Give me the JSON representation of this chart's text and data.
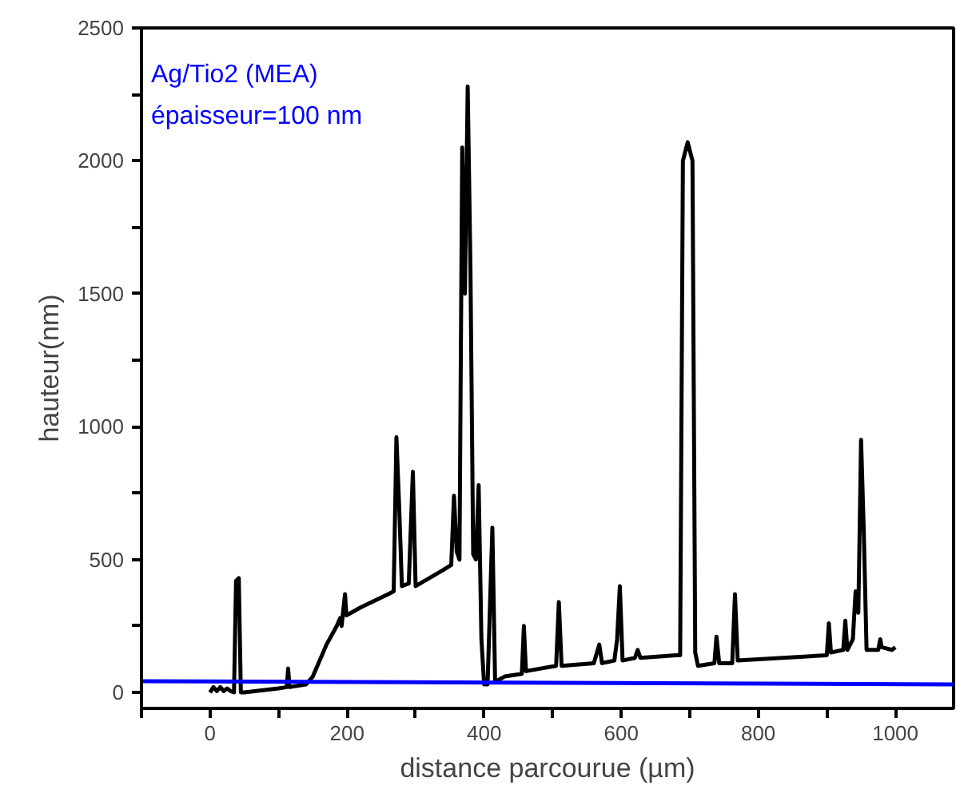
{
  "chart_data": {
    "type": "line",
    "xlabel": "distance parcourue (µm)",
    "ylabel": "hauteur(nm)",
    "annotations": [
      "Ag/Tio2 (MEA)",
      "épaisseur=100 nm"
    ],
    "xlim": [
      -100,
      1085
    ],
    "ylim": [
      -60,
      2500
    ],
    "xticks": [
      {
        "value": -100,
        "label": null
      },
      0,
      {
        "value": 100,
        "label": null
      },
      200,
      {
        "value": 300,
        "label": null
      },
      400,
      {
        "value": 500,
        "label": null
      },
      600,
      {
        "value": 700,
        "label": null
      },
      800,
      {
        "value": 900,
        "label": null
      },
      1000
    ],
    "yticks": [
      0,
      {
        "value": 250,
        "label": null
      },
      500,
      {
        "value": 750,
        "label": null
      },
      1000,
      {
        "value": 1250,
        "label": null
      },
      1500,
      {
        "value": 1750,
        "label": null
      },
      2000,
      {
        "value": 2250,
        "label": null
      },
      2500
    ],
    "grid": false,
    "marker": "none",
    "line_style": "solid",
    "series": [
      {
        "color": "#000000",
        "x": [
          0,
          5,
          10,
          15,
          20,
          25,
          30,
          35,
          38,
          42,
          45,
          50,
          100,
          112,
          114,
          116,
          140,
          150,
          170,
          185,
          190,
          192,
          197,
          199,
          220,
          260,
          268,
          272,
          276,
          280,
          290,
          296,
          300,
          340,
          352,
          356,
          360,
          364,
          368,
          372,
          376,
          380,
          384,
          388,
          392,
          396,
          400,
          405,
          412,
          416,
          430,
          455,
          458,
          461,
          505,
          509,
          513,
          560,
          568,
          572,
          590,
          594,
          598,
          602,
          620,
          624,
          628,
          680,
          686,
          690,
          697,
          704,
          708,
          712,
          736,
          739,
          743,
          762,
          766,
          770,
          900,
          903,
          906,
          924,
          927,
          930,
          938,
          942,
          946,
          950,
          954,
          958,
          975,
          978,
          980,
          995,
          1000
        ],
        "values": [
          0,
          20,
          5,
          20,
          5,
          15,
          5,
          0,
          420,
          430,
          0,
          0,
          15,
          20,
          90,
          20,
          30,
          60,
          180,
          250,
          280,
          250,
          370,
          290,
          320,
          370,
          380,
          960,
          700,
          400,
          410,
          830,
          400,
          460,
          480,
          740,
          530,
          500,
          2050,
          1500,
          2280,
          1600,
          520,
          500,
          780,
          200,
          30,
          30,
          620,
          40,
          60,
          70,
          250,
          80,
          100,
          340,
          100,
          110,
          180,
          110,
          120,
          200,
          400,
          120,
          130,
          160,
          130,
          140,
          140,
          2000,
          2070,
          2000,
          150,
          100,
          110,
          210,
          110,
          110,
          370,
          120,
          140,
          260,
          150,
          160,
          270,
          160,
          200,
          380,
          300,
          950,
          600,
          160,
          160,
          200,
          170,
          160,
          170
        ]
      },
      {
        "color": "#0000ff",
        "x": [
          -100,
          1085
        ],
        "values": [
          42,
          30
        ]
      }
    ]
  }
}
